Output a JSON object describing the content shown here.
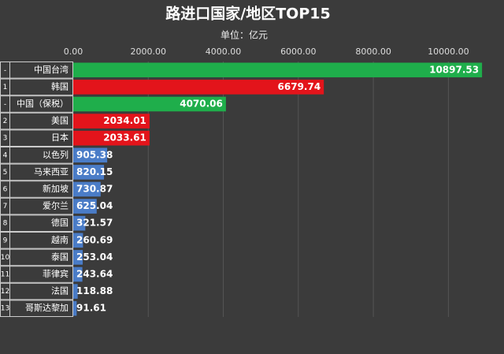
{
  "chart_data": {
    "type": "bar",
    "orientation": "horizontal",
    "title": "路进口国家/地区TOP15",
    "subtitle": "单位：亿元",
    "ranks": [
      "-",
      "1",
      "-",
      "2",
      "3",
      "4",
      "5",
      "6",
      "7",
      "8",
      "9",
      "10",
      "11",
      "12",
      "13"
    ],
    "categories": [
      "中国台湾",
      "韩国",
      "中国（保税）",
      "美国",
      "日本",
      "以色列",
      "马来西亚",
      "新加坡",
      "爱尔兰",
      "德国",
      "越南",
      "泰国",
      "菲律宾",
      "法国",
      "哥斯达黎加"
    ],
    "values": [
      10897.53,
      6679.74,
      4070.06,
      2034.01,
      2033.61,
      905.38,
      820.15,
      730.87,
      625.04,
      321.57,
      260.69,
      253.04,
      243.64,
      118.88,
      91.61
    ],
    "colors": [
      "#1fae4b",
      "#e3141b",
      "#1fae4b",
      "#e3141b",
      "#e3141b",
      "#4a7cc7",
      "#4a7cc7",
      "#4a7cc7",
      "#4a7cc7",
      "#4a7cc7",
      "#4a7cc7",
      "#4a7cc7",
      "#4a7cc7",
      "#4a7cc7",
      "#4a7cc7"
    ],
    "xlim": [
      0,
      11000
    ],
    "xticks": [
      {
        "value": 0,
        "label": "0.00"
      },
      {
        "value": 2000,
        "label": "2000.00"
      },
      {
        "value": 4000,
        "label": "4000.00"
      },
      {
        "value": 6000,
        "label": "6000.00"
      },
      {
        "value": 8000,
        "label": "8000.00"
      },
      {
        "value": 10000,
        "label": "10000.00"
      }
    ],
    "grid": true
  }
}
